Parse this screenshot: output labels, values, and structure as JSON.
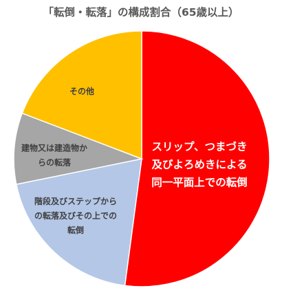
{
  "chart_data": {
    "type": "pie",
    "title": "「転倒・転落」の構成割合（65歳以上）",
    "slices": [
      {
        "label_lines": [
          "スリップ、つまづき",
          "及びよろめきによる",
          "同一平面上での転倒"
        ],
        "value": 52.1,
        "color": "#ff0000",
        "label_color": "#ffffff"
      },
      {
        "label_lines": [
          "階段及びステップから",
          "の転落及びその上での",
          "転倒"
        ],
        "value": 19.7,
        "color": "#b4c7e7",
        "label_color": "#404040"
      },
      {
        "label_lines": [
          "建物又は建造物か",
          "らの転落"
        ],
        "value": 9.0,
        "color": "#a6a6a6",
        "label_color": "#404040"
      },
      {
        "label_lines": [
          "その他"
        ],
        "value": 19.2,
        "color": "#ffc000",
        "label_color": "#404040"
      }
    ],
    "start": "12 o'clock",
    "direction": "clockwise",
    "legend": "none"
  }
}
